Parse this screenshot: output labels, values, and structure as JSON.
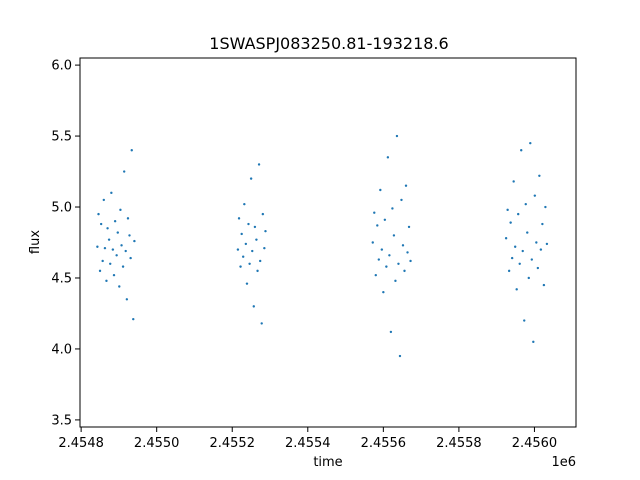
{
  "chart_data": {
    "type": "scatter",
    "title": "1SWASPJ083250.81-193218.6",
    "xlabel": "time",
    "ylabel": "flux",
    "x_offset_label": "1e6",
    "xlim": [
      2454797,
      2456110
    ],
    "ylim": [
      3.45,
      6.05
    ],
    "x_ticks": [
      2454800,
      2455000,
      2455200,
      2455400,
      2455600,
      2455800,
      2456000
    ],
    "x_tick_labels": [
      "2.4548",
      "2.4550",
      "2.4552",
      "2.4554",
      "2.4556",
      "2.4558",
      "2.4560"
    ],
    "y_ticks": [
      3.5,
      4.0,
      4.5,
      5.0,
      5.5,
      6.0
    ],
    "y_tick_labels": [
      "3.5",
      "4.0",
      "4.5",
      "5.0",
      "5.5",
      "6.0"
    ],
    "grid": false,
    "point_color": "#1f77b4",
    "series": [
      {
        "x": [
          2454843,
          2454846,
          2454850,
          2454853,
          2454857,
          2454860,
          2454863,
          2454867,
          2454870,
          2454874,
          2454877,
          2454880,
          2454884,
          2454887,
          2454890,
          2454894,
          2454897,
          2454901,
          2454904,
          2454907,
          2454911,
          2454914,
          2454918,
          2454921,
          2454924,
          2454928,
          2454931,
          2454934,
          2454938,
          2454941
        ],
        "y": [
          4.72,
          4.95,
          4.55,
          4.88,
          4.62,
          5.05,
          4.71,
          4.48,
          4.85,
          4.77,
          4.6,
          5.1,
          4.7,
          4.52,
          4.9,
          4.66,
          4.82,
          4.44,
          4.98,
          4.73,
          4.58,
          5.25,
          4.69,
          4.35,
          4.92,
          4.8,
          4.64,
          5.4,
          4.21,
          4.76
        ]
      },
      {
        "x": [
          2455215,
          2455218,
          2455222,
          2455225,
          2455229,
          2455232,
          2455236,
          2455239,
          2455243,
          2455246,
          2455250,
          2455253,
          2455257,
          2455260,
          2455264,
          2455267,
          2455271,
          2455274,
          2455278,
          2455281,
          2455285,
          2455288
        ],
        "y": [
          4.7,
          4.92,
          4.58,
          4.81,
          4.65,
          5.02,
          4.74,
          4.46,
          4.88,
          4.6,
          5.2,
          4.69,
          4.3,
          4.86,
          4.77,
          4.55,
          5.3,
          4.62,
          4.18,
          4.95,
          4.71,
          4.83
        ]
      },
      {
        "x": [
          2455572,
          2455576,
          2455580,
          2455584,
          2455588,
          2455592,
          2455596,
          2455600,
          2455604,
          2455608,
          2455612,
          2455616,
          2455620,
          2455624,
          2455628,
          2455632,
          2455636,
          2455640,
          2455644,
          2455648,
          2455652,
          2455656,
          2455660,
          2455664,
          2455668,
          2455672
        ],
        "y": [
          4.75,
          4.96,
          4.52,
          4.87,
          4.63,
          5.12,
          4.7,
          4.4,
          4.91,
          4.58,
          5.35,
          4.66,
          4.12,
          4.99,
          4.8,
          4.48,
          5.5,
          4.6,
          3.95,
          5.05,
          4.73,
          4.55,
          5.15,
          4.68,
          4.86,
          4.62
        ]
      },
      {
        "x": [
          2455925,
          2455929,
          2455933,
          2455937,
          2455941,
          2455945,
          2455949,
          2455953,
          2455957,
          2455961,
          2455965,
          2455969,
          2455973,
          2455977,
          2455981,
          2455985,
          2455989,
          2455993,
          2455997,
          2456001,
          2456005,
          2456009,
          2456013,
          2456017,
          2456021,
          2456025,
          2456029,
          2456033
        ],
        "y": [
          4.78,
          4.98,
          4.55,
          4.89,
          4.64,
          5.18,
          4.72,
          4.42,
          4.95,
          4.6,
          5.4,
          4.69,
          4.2,
          5.02,
          4.82,
          4.5,
          5.45,
          4.63,
          4.05,
          5.08,
          4.75,
          4.57,
          5.22,
          4.7,
          4.88,
          4.45,
          5.0,
          4.74
        ]
      }
    ]
  }
}
